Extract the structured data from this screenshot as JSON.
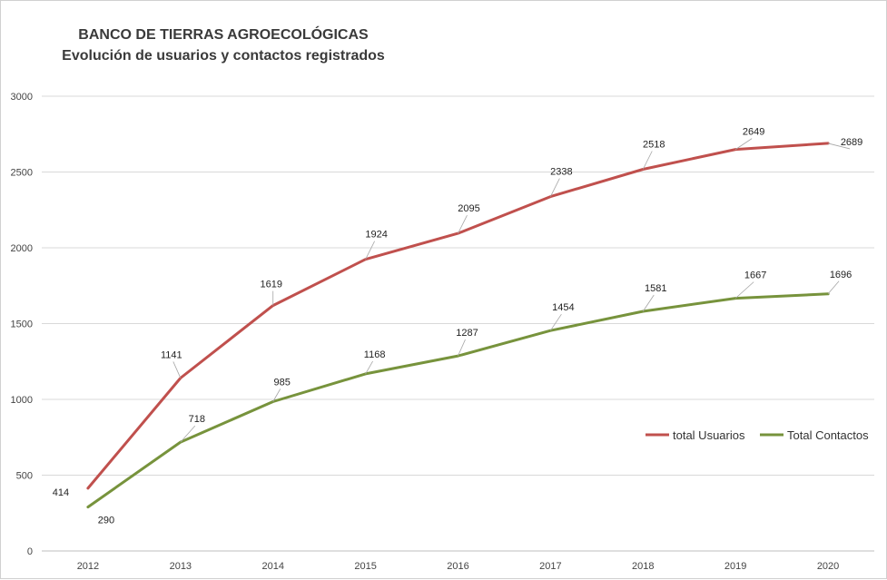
{
  "chart_data": {
    "type": "line",
    "title": "BANCO DE TIERRAS AGROECOLÓGICAS",
    "subtitle": "Evolución de usuarios y contactos registrados",
    "x": [
      "2012",
      "2013",
      "2014",
      "2015",
      "2016",
      "2017",
      "2018",
      "2019",
      "2020"
    ],
    "series": [
      {
        "name": "total Usuarios",
        "color": "#c0504d",
        "values": [
          414,
          1141,
          1619,
          1924,
          2095,
          2338,
          2518,
          2649,
          2689
        ]
      },
      {
        "name": "Total Contactos",
        "color": "#77933c",
        "values": [
          290,
          718,
          985,
          1168,
          1287,
          1454,
          1581,
          1667,
          1696
        ]
      }
    ],
    "ylim": [
      0,
      3000
    ],
    "yticks": [
      0,
      500,
      1000,
      1500,
      2000,
      2500,
      3000
    ],
    "grid": "horizontal",
    "legend": "right"
  }
}
